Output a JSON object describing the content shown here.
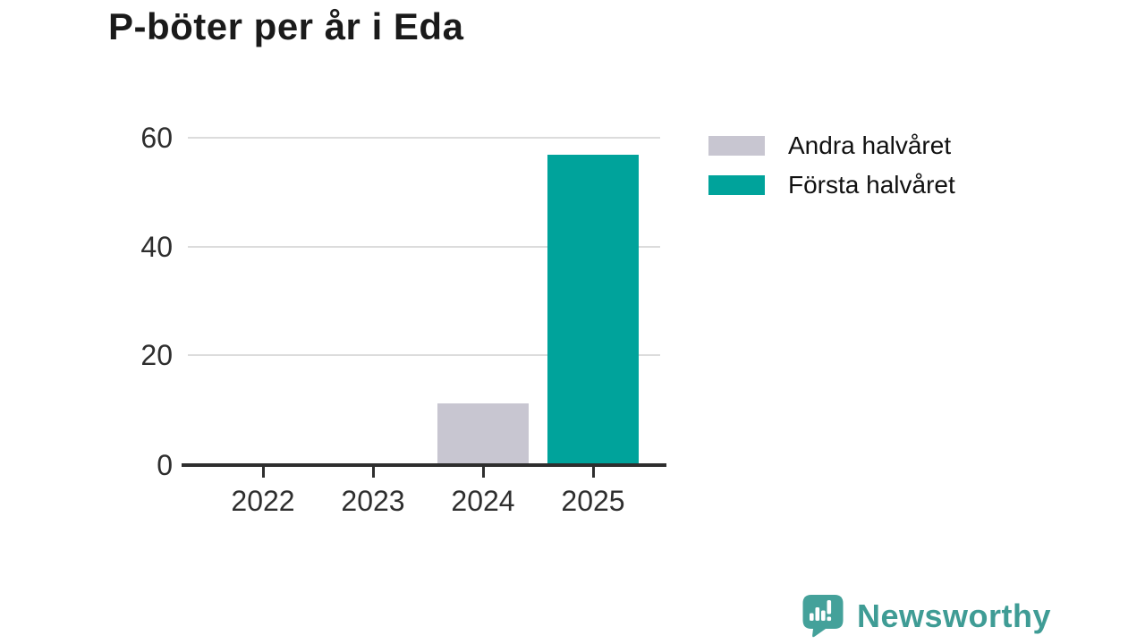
{
  "title": "P-böter per år i Eda",
  "chart_data": {
    "type": "bar",
    "stacked": true,
    "categories": [
      "2022",
      "2023",
      "2024",
      "2025"
    ],
    "series": [
      {
        "name": "Andra halvåret",
        "color": "#c8c6d1",
        "values": [
          0,
          0,
          11,
          0
        ]
      },
      {
        "name": "Första halvåret",
        "color": "#00a39b",
        "values": [
          0,
          0,
          0,
          57
        ]
      }
    ],
    "title": "P-böter per år i Eda",
    "xlabel": "",
    "ylabel": "",
    "ylim": [
      0,
      60
    ],
    "yticks": [
      0,
      20,
      40,
      60
    ],
    "grid": true,
    "legend_position": "top-right"
  },
  "legend": {
    "items": [
      {
        "label": "Andra halvåret",
        "color": "#c8c6d1"
      },
      {
        "label": "Första halvåret",
        "color": "#00a39b"
      }
    ]
  },
  "footer": {
    "brand": "Newsworthy",
    "logo_icon": "bar-chart-speech-bubble",
    "brand_color": "#3f9c95"
  },
  "colors": {
    "first_half_bar": "#00a39b",
    "second_half_bar": "#c8c6d1",
    "axis": "#2e2e2e",
    "gridline": "#dcdcdc",
    "title_text": "#1a1a1a",
    "tick_text": "#2e2e2e",
    "background": "#ffffff"
  }
}
